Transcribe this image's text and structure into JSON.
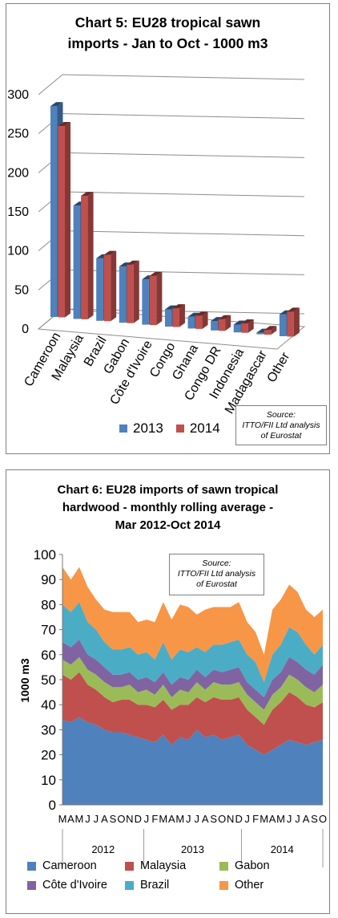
{
  "charts": [
    {
      "title_line1": "Chart 5: EU28 tropical sawn",
      "title_line2": "imports - Jan to Oct - 1000 m3",
      "source_lines": [
        "Source:",
        "ITTO/FII Ltd analysis",
        "of Eurostat"
      ]
    },
    {
      "title_line1": "Chart 6: EU28 imports of sawn tropical",
      "title_line2": "hardwood - monthly rolling average -",
      "title_line3": "Mar 2012-Oct 2014",
      "source_lines": [
        "Source:",
        "ITTO/FII Ltd analysis",
        "of Eurostat"
      ]
    }
  ],
  "chart_data": [
    {
      "type": "bar",
      "title": "Chart 5: EU28 tropical sawn imports - Jan to Oct - 1000 m3",
      "categories": [
        "Cameroon",
        "Malaysia",
        "Brazil",
        "Gabon",
        "Côte d'Ivoire",
        "Congo",
        "Ghana",
        "Congo DR",
        "Indonesia",
        "Madagascar",
        "Other"
      ],
      "series": [
        {
          "name": "2013",
          "values": [
            270,
            145,
            80,
            72,
            58,
            22,
            15,
            12,
            10,
            2,
            28
          ],
          "color": "#4f81bd"
        },
        {
          "name": "2014",
          "values": [
            245,
            158,
            85,
            75,
            63,
            24,
            17,
            15,
            12,
            6,
            32
          ],
          "color": "#c0504d"
        }
      ],
      "ylim": [
        0,
        300
      ],
      "yticks": [
        0,
        50,
        100,
        150,
        200,
        250,
        300
      ],
      "grid": true,
      "legend": "bottom"
    },
    {
      "type": "area",
      "stacked": true,
      "title": "Chart 6: EU28 imports of sawn tropical hardwood - monthly rolling average - Mar 2012-Oct 2014",
      "ylabel": "1000 m3",
      "ylim": [
        0,
        100
      ],
      "yticks": [
        0,
        10,
        20,
        30,
        40,
        50,
        60,
        70,
        80,
        90,
        100
      ],
      "x_labels": [
        "M",
        "A",
        "M",
        "J",
        "J",
        "A",
        "S",
        "O",
        "N",
        "D",
        "J",
        "F",
        "M",
        "A",
        "M",
        "J",
        "J",
        "A",
        "S",
        "O",
        "N",
        "D",
        "J",
        "F",
        "M",
        "A",
        "M",
        "J",
        "J",
        "A",
        "S",
        "O"
      ],
      "year_groups": [
        {
          "label": "2012",
          "count": 10
        },
        {
          "label": "2013",
          "count": 12
        },
        {
          "label": "2014",
          "count": 10
        }
      ],
      "series": [
        {
          "name": "Cameroon",
          "color": "#4f81bd",
          "values": [
            34,
            33,
            35,
            33,
            32,
            30,
            29,
            29,
            28,
            27,
            26,
            25,
            28,
            24,
            27,
            26,
            30,
            27,
            28,
            26,
            27,
            28,
            24,
            22,
            20,
            22,
            24,
            26,
            25,
            24,
            25,
            26
          ]
        },
        {
          "name": "Malaysia",
          "color": "#c0504d",
          "values": [
            18,
            17,
            18,
            15,
            14,
            13,
            12,
            13,
            14,
            13,
            14,
            14,
            14,
            14,
            13,
            14,
            13,
            14,
            15,
            16,
            15,
            15,
            14,
            13,
            12,
            16,
            17,
            19,
            18,
            16,
            14,
            15
          ]
        },
        {
          "name": "Gabon",
          "color": "#9bbb59",
          "values": [
            6,
            6,
            6,
            6,
            6,
            6,
            6,
            5,
            6,
            5,
            6,
            5,
            6,
            5,
            6,
            5,
            6,
            5,
            6,
            6,
            6,
            6,
            6,
            6,
            6,
            6,
            6,
            7,
            7,
            7,
            6,
            7
          ]
        },
        {
          "name": "Côte d'Ivoire",
          "color": "#8064a2",
          "values": [
            7,
            7,
            7,
            6,
            6,
            6,
            5,
            5,
            5,
            5,
            5,
            5,
            5,
            5,
            5,
            5,
            5,
            5,
            5,
            5,
            6,
            6,
            5,
            5,
            5,
            6,
            6,
            7,
            7,
            7,
            7,
            8
          ]
        },
        {
          "name": "Brazil",
          "color": "#4bacc6",
          "values": [
            15,
            14,
            15,
            13,
            12,
            10,
            10,
            10,
            10,
            10,
            10,
            9,
            12,
            10,
            11,
            11,
            9,
            10,
            10,
            11,
            11,
            11,
            11,
            11,
            6,
            10,
            11,
            12,
            12,
            10,
            8,
            8
          ]
        },
        {
          "name": "Other",
          "color": "#f79646",
          "values": [
            15,
            13,
            14,
            14,
            12,
            13,
            15,
            15,
            14,
            13,
            13,
            15,
            16,
            16,
            18,
            18,
            13,
            17,
            15,
            15,
            14,
            15,
            13,
            12,
            11,
            18,
            18,
            17,
            16,
            14,
            15,
            14
          ]
        }
      ],
      "legend": "bottom"
    }
  ],
  "legend1": [
    {
      "label": "2013",
      "color": "#4f81bd"
    },
    {
      "label": "2014",
      "color": "#c0504d"
    }
  ],
  "legend2": [
    {
      "label": "Cameroon",
      "color": "#4f81bd"
    },
    {
      "label": "Malaysia",
      "color": "#c0504d"
    },
    {
      "label": "Gabon",
      "color": "#9bbb59"
    },
    {
      "label": "Côte d'Ivoire",
      "color": "#8064a2"
    },
    {
      "label": "Brazil",
      "color": "#4bacc6"
    },
    {
      "label": "Other",
      "color": "#f79646"
    }
  ]
}
